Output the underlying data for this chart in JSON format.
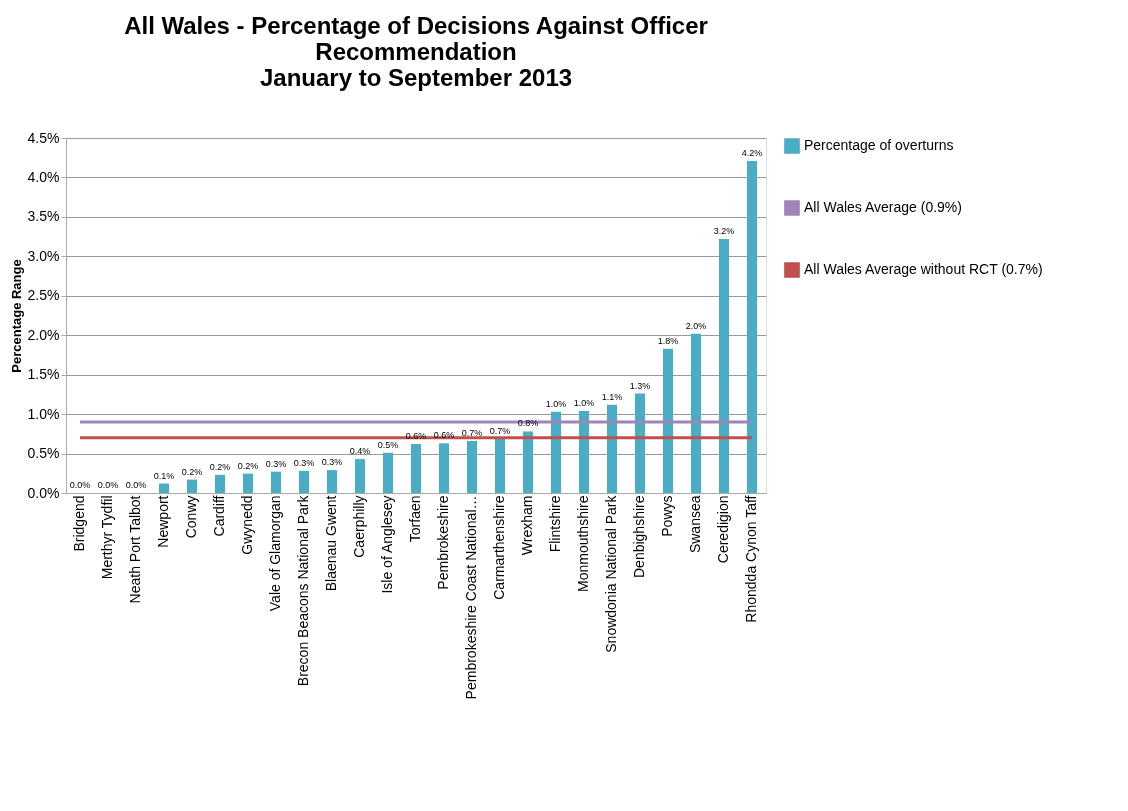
{
  "chart_data": {
    "type": "bar",
    "title": "All Wales - Percentage of Decisions Against Officer\nRecommendation\nJanuary to September 2013",
    "ylabel": "Percentage Range",
    "categories": [
      "Bridgend",
      "Merthyr Tydfil",
      "Neath Port Talbot",
      "Newport",
      "Conwy",
      "Cardiff",
      "Gwynedd",
      "Vale of Glamorgan",
      "Brecon Beacons National Park",
      "Blaenau Gwent",
      "Caerphilly",
      "Isle of Anglesey",
      "Torfaen",
      "Pembrokeshire",
      "Pembrokeshire Coast National…",
      "Carmarthenshire",
      "Wrexham",
      "Flintshire",
      "Monmouthshire",
      "Snowdonia National Park",
      "Denbighshire",
      "Powys",
      "Swansea",
      "Ceredigion",
      "Rhondda Cynon Taff"
    ],
    "series": [
      {
        "name": "Percentage of overturns",
        "color": "#4bacc6",
        "values": [
          0,
          0,
          0,
          0.12,
          0.17,
          0.23,
          0.245,
          0.27,
          0.28,
          0.29,
          0.43,
          0.51,
          0.62,
          0.63,
          0.66,
          0.69,
          0.78,
          1.03,
          1.04,
          1.12,
          1.26,
          1.83,
          2.02,
          3.22,
          4.21
        ],
        "value_labels": [
          "0.0%",
          "0.0%",
          "0.0%",
          "0.1%",
          "0.2%",
          "0.2%",
          "0.2%",
          "0.3%",
          "0.3%",
          "0.3%",
          "0.4%",
          "0.5%",
          "0.6%",
          "0.6%",
          "0.7%",
          "0.7%",
          "0.8%",
          "1.0%",
          "1.0%",
          "1.1%",
          "1.3%",
          "1.8%",
          "2.0%",
          "3.2%",
          "4.2%"
        ]
      },
      {
        "name": "All Wales Average (0.9%)",
        "type": "line",
        "color": "#9e86b8",
        "values": [
          0.9,
          0.9,
          0.9,
          0.9,
          0.9,
          0.9,
          0.9,
          0.9,
          0.9,
          0.9,
          0.9,
          0.9,
          0.9,
          0.9,
          0.9,
          0.9,
          0.9,
          0.9,
          0.9,
          0.9,
          0.9,
          0.9,
          0.9,
          0.9,
          0.9
        ]
      },
      {
        "name": "All Wales Average without RCT (0.7%)",
        "type": "line",
        "color": "#c0504d",
        "values": [
          0.7,
          0.7,
          0.7,
          0.7,
          0.7,
          0.7,
          0.7,
          0.7,
          0.7,
          0.7,
          0.7,
          0.7,
          0.7,
          0.7,
          0.7,
          0.7,
          0.7,
          0.7,
          0.7,
          0.7,
          0.7,
          0.7,
          0.7,
          0.7,
          0.7
        ]
      }
    ],
    "ylim": [
      0,
      4.5
    ],
    "yticks": [
      {
        "value": 0,
        "label": "0.0%"
      },
      {
        "value": 0.5,
        "label": "0.5%"
      },
      {
        "value": 1,
        "label": "1.0%"
      },
      {
        "value": 1.5,
        "label": "1.5%"
      },
      {
        "value": 2,
        "label": "2.0%"
      },
      {
        "value": 2.5,
        "label": "2.5%"
      },
      {
        "value": 3,
        "label": "3.0%"
      },
      {
        "value": 3.5,
        "label": "3.5%"
      },
      {
        "value": 4,
        "label": "4.0%"
      },
      {
        "value": 4.5,
        "label": "4.5%"
      }
    ],
    "grid": "y",
    "legend": "right",
    "marker": "none",
    "line_style": "solid"
  }
}
